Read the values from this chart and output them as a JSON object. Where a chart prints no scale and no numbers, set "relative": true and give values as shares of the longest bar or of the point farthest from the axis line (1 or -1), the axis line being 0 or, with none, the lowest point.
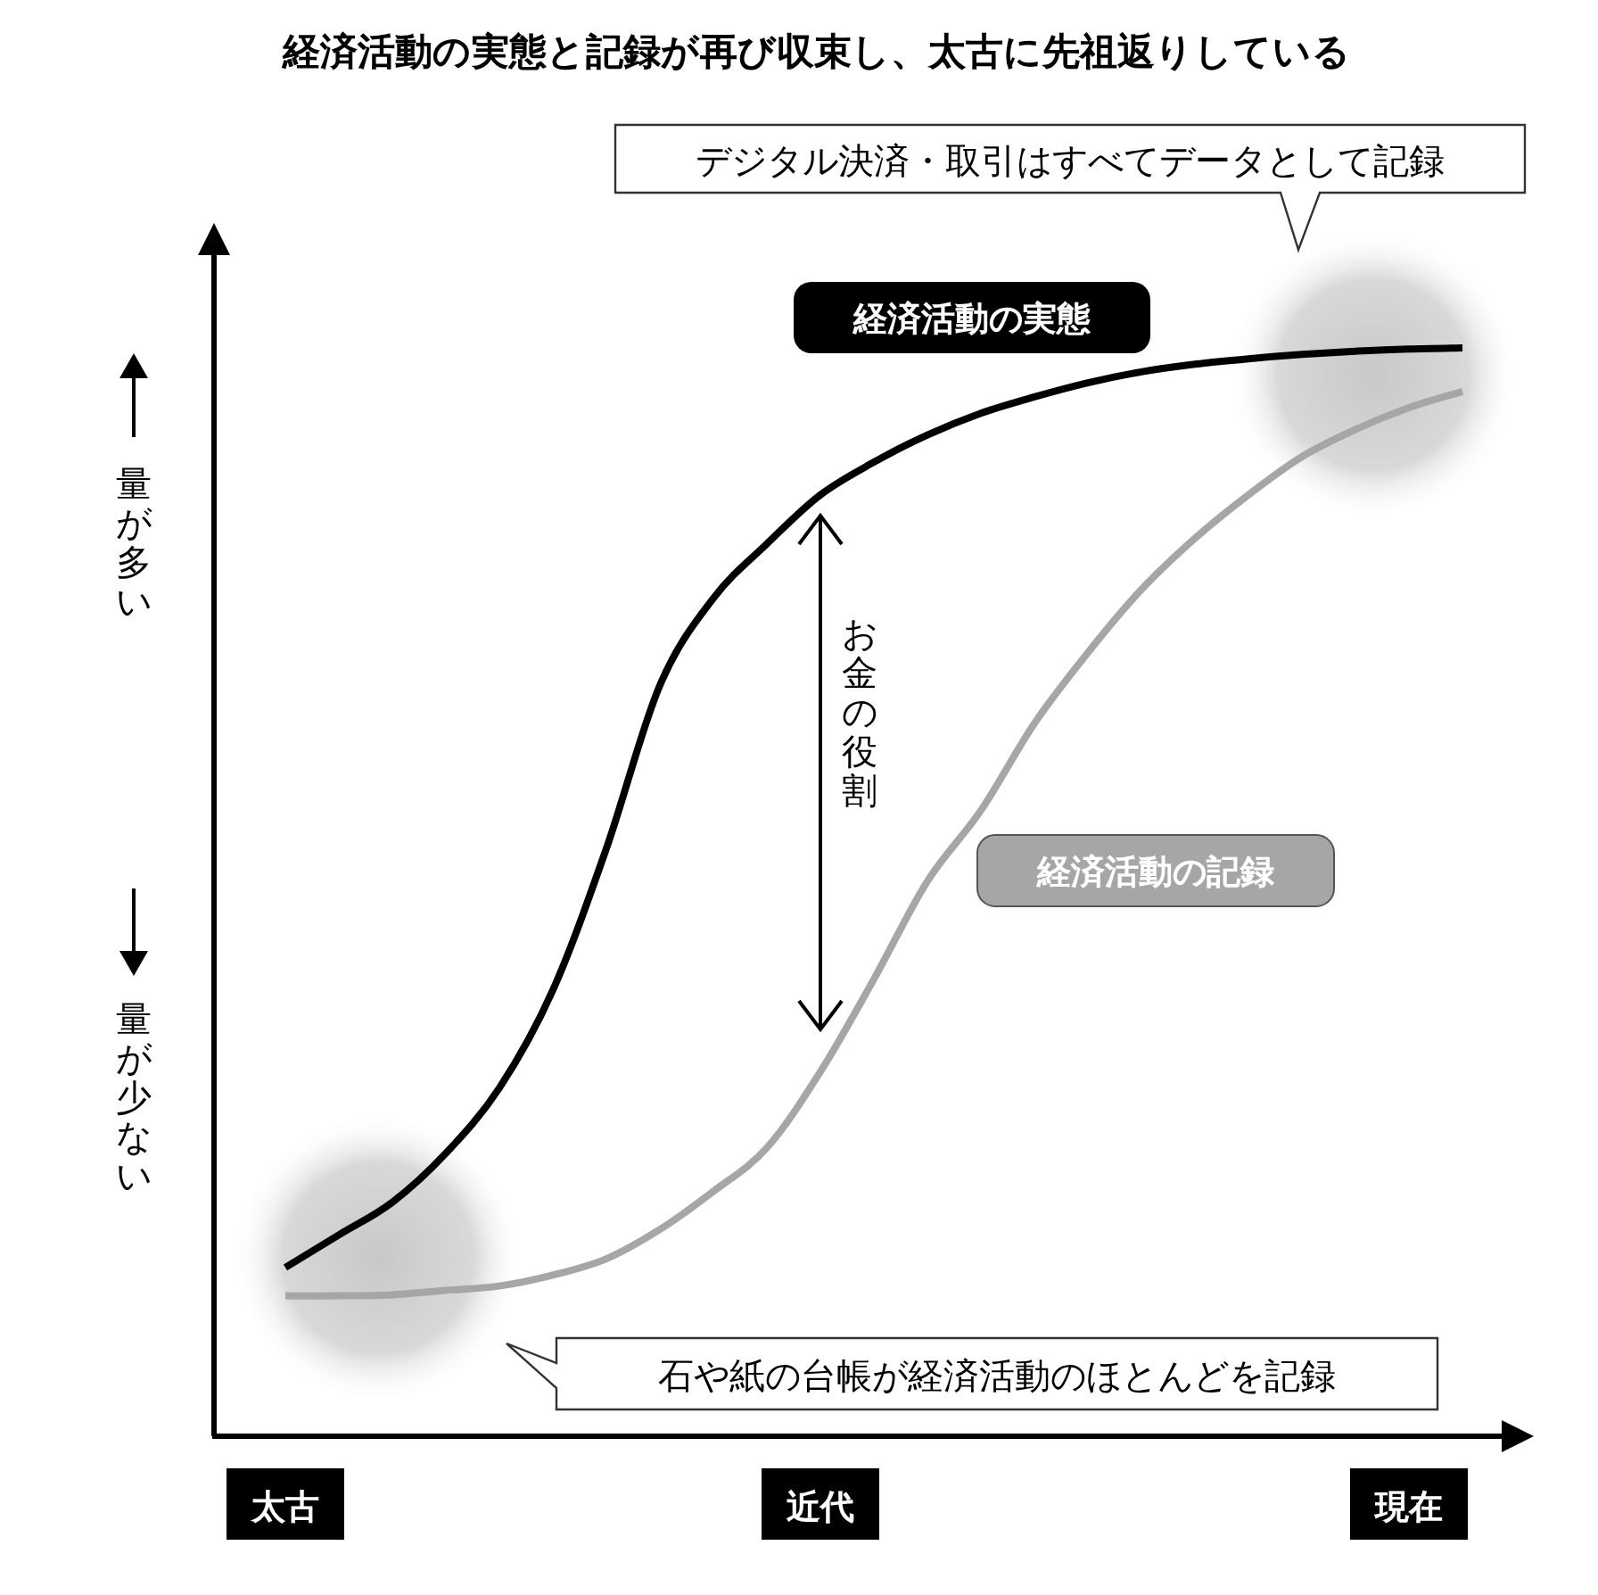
{
  "chart_data": {
    "type": "line",
    "title": "経済活動の実態と記録が再び収束し、太古に先祖返りしている",
    "relative": true,
    "categories": [
      "太古",
      null,
      null,
      null,
      null,
      null,
      null,
      null,
      null,
      null,
      "近代",
      null,
      null,
      null,
      null,
      null,
      null,
      null,
      null,
      null,
      null,
      "現在",
      null
    ],
    "series": [
      {
        "name": "経済活動の実態",
        "color": "#000000",
        "values": [
          0.155,
          0.185,
          0.215,
          0.26,
          0.32,
          0.41,
          0.54,
          0.69,
          0.77,
          0.82,
          0.865,
          0.895,
          0.92,
          0.94,
          0.955,
          0.968,
          0.978,
          0.985,
          0.99,
          0.994,
          0.997,
          0.999,
          1
        ]
      },
      {
        "name": "経済活動の記録",
        "color": "#a6a6a6",
        "values": [
          0.129,
          0.129,
          0.13,
          0.134,
          0.138,
          0.148,
          0.163,
          0.19,
          0.225,
          0.265,
          0.335,
          0.42,
          0.51,
          0.575,
          0.655,
          0.72,
          0.778,
          0.825,
          0.865,
          0.9,
          0.925,
          0.945,
          0.96
        ]
      }
    ],
    "annotations": [
      "デジタル決済・取引はすべてデータとして記録",
      "石や紙の台帳が経済活動のほとんどを記録",
      "お金の役割",
      "量が多い",
      "量が少ない"
    ]
  }
}
